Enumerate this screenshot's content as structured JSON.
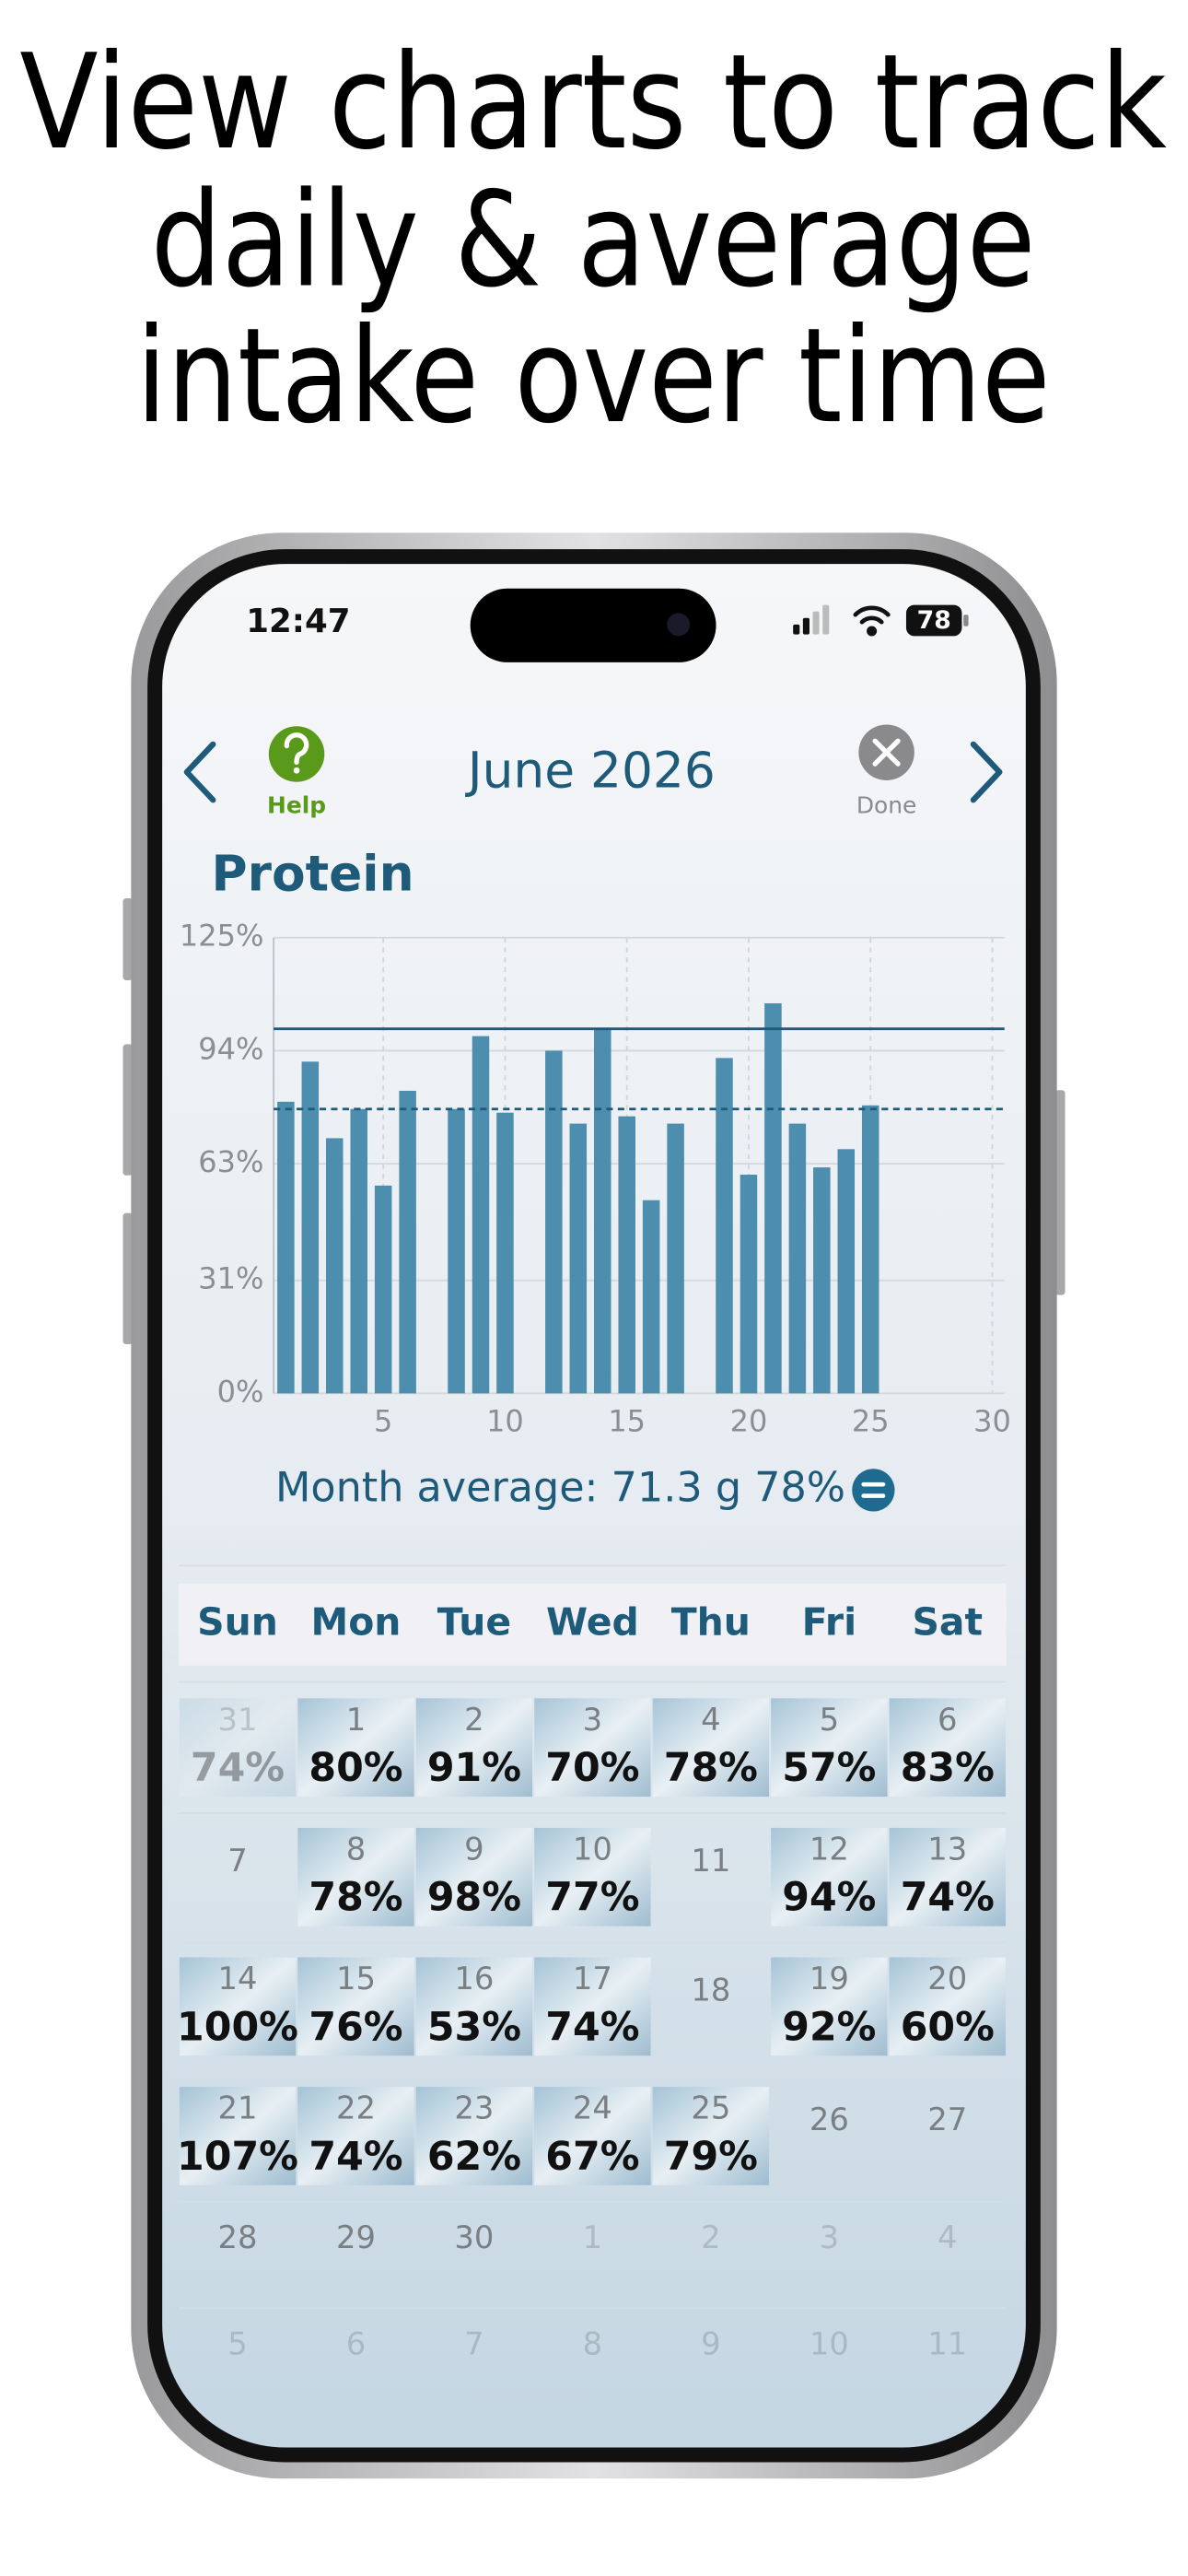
{
  "headline": [
    "View charts to track",
    "daily & average",
    "intake over time"
  ],
  "status_bar": {
    "time": "12:47",
    "battery": "78"
  },
  "nav": {
    "help": "Help",
    "title": "June 2026",
    "done": "Done"
  },
  "chart_data": {
    "type": "bar",
    "title": "Protein",
    "color": "#4d8eae",
    "x": [
      1,
      2,
      3,
      4,
      5,
      6,
      7,
      8,
      9,
      10,
      11,
      12,
      13,
      14,
      15,
      16,
      17,
      18,
      19,
      20,
      21,
      22,
      23,
      24,
      25,
      26,
      27,
      28,
      29,
      30
    ],
    "values": [
      80,
      91,
      70,
      78,
      57,
      83,
      null,
      78,
      98,
      77,
      null,
      94,
      74,
      100,
      76,
      53,
      74,
      null,
      92,
      60,
      107,
      74,
      62,
      67,
      79,
      null,
      null,
      null,
      null,
      null
    ],
    "xlim": [
      0.5,
      30.5
    ],
    "xticks": [
      5,
      10,
      15,
      20,
      25,
      30
    ],
    "ylim": [
      0,
      125
    ],
    "yticks": [
      {
        "value": 0,
        "label": "0%"
      },
      {
        "value": 31,
        "label": "31%"
      },
      {
        "value": 63,
        "label": "63%"
      },
      {
        "value": 94,
        "label": "94%"
      },
      {
        "value": 125,
        "label": "125%"
      }
    ],
    "reference_lines": [
      {
        "value": 100,
        "style": "solid"
      },
      {
        "value": 78,
        "style": "dashed"
      }
    ],
    "grid": true
  },
  "average": "Month average: 71.3 g 78%",
  "calendar": {
    "weekdays": [
      "Sun",
      "Mon",
      "Tue",
      "Wed",
      "Thu",
      "Fri",
      "Sat"
    ],
    "weeks": [
      [
        {
          "day": "31",
          "value": "74%",
          "muted": true
        },
        {
          "day": "1",
          "value": "80%"
        },
        {
          "day": "2",
          "value": "91%"
        },
        {
          "day": "3",
          "value": "70%"
        },
        {
          "day": "4",
          "value": "78%"
        },
        {
          "day": "5",
          "value": "57%"
        },
        {
          "day": "6",
          "value": "83%"
        }
      ],
      [
        {
          "day": "7"
        },
        {
          "day": "8",
          "value": "78%"
        },
        {
          "day": "9",
          "value": "98%"
        },
        {
          "day": "10",
          "value": "77%"
        },
        {
          "day": "11"
        },
        {
          "day": "12",
          "value": "94%"
        },
        {
          "day": "13",
          "value": "74%"
        }
      ],
      [
        {
          "day": "14",
          "value": "100%"
        },
        {
          "day": "15",
          "value": "76%"
        },
        {
          "day": "16",
          "value": "53%"
        },
        {
          "day": "17",
          "value": "74%"
        },
        {
          "day": "18"
        },
        {
          "day": "19",
          "value": "92%"
        },
        {
          "day": "20",
          "value": "60%"
        }
      ],
      [
        {
          "day": "21",
          "value": "107%"
        },
        {
          "day": "22",
          "value": "74%"
        },
        {
          "day": "23",
          "value": "62%"
        },
        {
          "day": "24",
          "value": "67%"
        },
        {
          "day": "25",
          "value": "79%"
        },
        {
          "day": "26"
        },
        {
          "day": "27"
        }
      ],
      [
        {
          "day": "28"
        },
        {
          "day": "29"
        },
        {
          "day": "30"
        },
        {
          "day": "1",
          "muted": true
        },
        {
          "day": "2",
          "muted": true
        },
        {
          "day": "3",
          "muted": true
        },
        {
          "day": "4",
          "muted": true
        }
      ],
      [
        {
          "day": "5",
          "muted": true
        },
        {
          "day": "6",
          "muted": true
        },
        {
          "day": "7",
          "muted": true
        },
        {
          "day": "8",
          "muted": true
        },
        {
          "day": "9",
          "muted": true
        },
        {
          "day": "10",
          "muted": true
        },
        {
          "day": "11",
          "muted": true
        }
      ]
    ]
  }
}
